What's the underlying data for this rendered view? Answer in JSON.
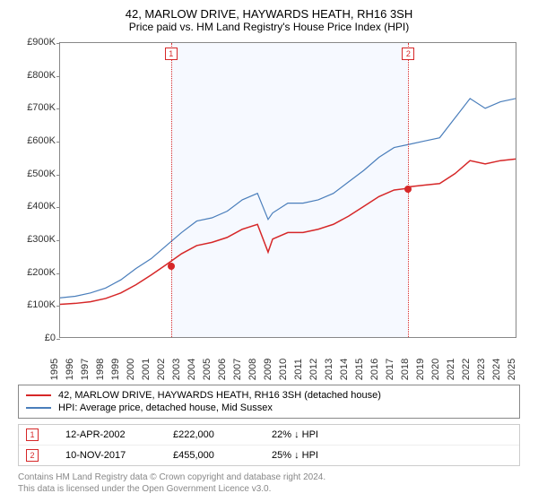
{
  "title": "42, MARLOW DRIVE, HAYWARDS HEATH, RH16 3SH",
  "subtitle": "Price paid vs. HM Land Registry's House Price Index (HPI)",
  "chart": {
    "type": "line",
    "background_color": "#ffffff",
    "border_color": "#888888",
    "xlim": [
      1995,
      2025
    ],
    "ylim": [
      0,
      900000
    ],
    "ytick_step": 100000,
    "yticks": [
      "£0",
      "£100K",
      "£200K",
      "£300K",
      "£400K",
      "£500K",
      "£600K",
      "£700K",
      "£800K",
      "£900K"
    ],
    "xticks": [
      "1995",
      "1996",
      "1997",
      "1998",
      "1999",
      "2000",
      "2001",
      "2002",
      "2003",
      "2004",
      "2005",
      "2006",
      "2007",
      "2008",
      "2009",
      "2010",
      "2011",
      "2012",
      "2013",
      "2014",
      "2015",
      "2016",
      "2017",
      "2018",
      "2019",
      "2020",
      "2021",
      "2022",
      "2023",
      "2024",
      "2025"
    ],
    "series": [
      {
        "name": "property",
        "label": "42, MARLOW DRIVE, HAYWARDS HEATH, RH16 3SH (detached house)",
        "color": "#d62728",
        "line_width": 1.5,
        "data": [
          [
            1995,
            100000
          ],
          [
            1996,
            103000
          ],
          [
            1997,
            108000
          ],
          [
            1998,
            118000
          ],
          [
            1999,
            135000
          ],
          [
            2000,
            160000
          ],
          [
            2001,
            190000
          ],
          [
            2002,
            222000
          ],
          [
            2003,
            255000
          ],
          [
            2004,
            280000
          ],
          [
            2005,
            290000
          ],
          [
            2006,
            305000
          ],
          [
            2007,
            330000
          ],
          [
            2008,
            345000
          ],
          [
            2008.7,
            260000
          ],
          [
            2009,
            300000
          ],
          [
            2010,
            320000
          ],
          [
            2011,
            320000
          ],
          [
            2012,
            330000
          ],
          [
            2013,
            345000
          ],
          [
            2014,
            370000
          ],
          [
            2015,
            400000
          ],
          [
            2016,
            430000
          ],
          [
            2017,
            450000
          ],
          [
            2017.85,
            455000
          ],
          [
            2018,
            460000
          ],
          [
            2019,
            465000
          ],
          [
            2020,
            470000
          ],
          [
            2021,
            500000
          ],
          [
            2022,
            540000
          ],
          [
            2023,
            530000
          ],
          [
            2024,
            540000
          ],
          [
            2025,
            545000
          ]
        ]
      },
      {
        "name": "hpi",
        "label": "HPI: Average price, detached house, Mid Sussex",
        "color": "#4a7ebb",
        "line_width": 1.2,
        "data": [
          [
            1995,
            120000
          ],
          [
            1996,
            125000
          ],
          [
            1997,
            135000
          ],
          [
            1998,
            150000
          ],
          [
            1999,
            175000
          ],
          [
            2000,
            210000
          ],
          [
            2001,
            240000
          ],
          [
            2002,
            280000
          ],
          [
            2003,
            320000
          ],
          [
            2004,
            355000
          ],
          [
            2005,
            365000
          ],
          [
            2006,
            385000
          ],
          [
            2007,
            420000
          ],
          [
            2008,
            440000
          ],
          [
            2008.7,
            360000
          ],
          [
            2009,
            380000
          ],
          [
            2010,
            410000
          ],
          [
            2011,
            410000
          ],
          [
            2012,
            420000
          ],
          [
            2013,
            440000
          ],
          [
            2014,
            475000
          ],
          [
            2015,
            510000
          ],
          [
            2016,
            550000
          ],
          [
            2017,
            580000
          ],
          [
            2018,
            590000
          ],
          [
            2019,
            600000
          ],
          [
            2020,
            610000
          ],
          [
            2021,
            670000
          ],
          [
            2022,
            730000
          ],
          [
            2023,
            700000
          ],
          [
            2024,
            720000
          ],
          [
            2025,
            730000
          ]
        ]
      }
    ],
    "markers": [
      {
        "id": "1",
        "x": 2002.28,
        "y": 222000,
        "color": "#d62728"
      },
      {
        "id": "2",
        "x": 2017.85,
        "y": 455000,
        "color": "#d62728"
      }
    ],
    "shade": {
      "from": 2002.28,
      "to": 2017.85
    }
  },
  "table": {
    "rows": [
      {
        "marker": "1",
        "marker_color": "#d62728",
        "date": "12-APR-2002",
        "price": "£222,000",
        "pct": "22% ↓ HPI"
      },
      {
        "marker": "2",
        "marker_color": "#d62728",
        "date": "10-NOV-2017",
        "price": "£455,000",
        "pct": "25% ↓ HPI"
      }
    ]
  },
  "footer": {
    "line1": "Contains HM Land Registry data © Crown copyright and database right 2024.",
    "line2": "This data is licensed under the Open Government Licence v3.0."
  }
}
